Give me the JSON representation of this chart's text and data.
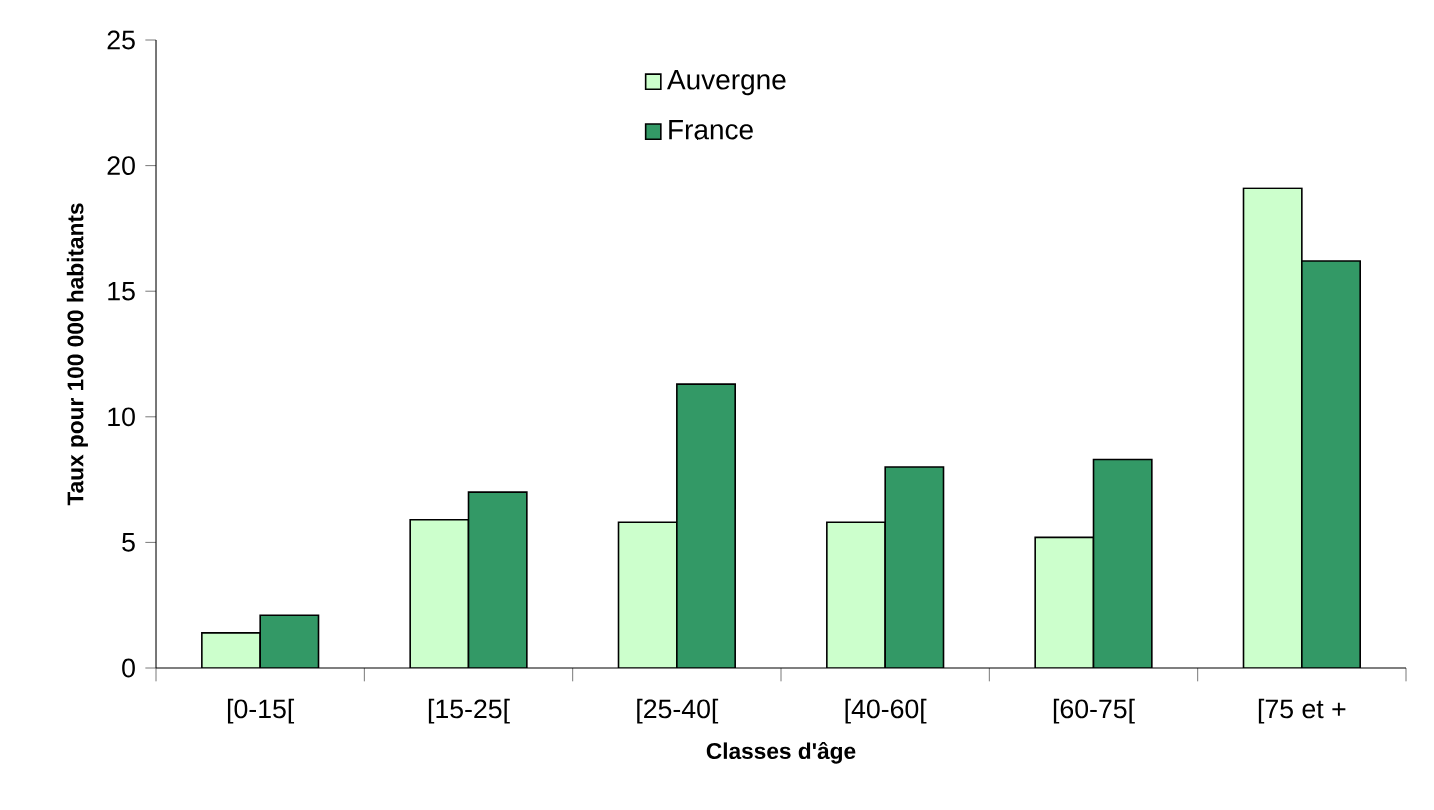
{
  "chart_data": {
    "type": "bar",
    "xlabel": "Classes d'âge",
    "ylabel": "Taux pour 100 000 habitants",
    "categories": [
      "[0-15[",
      "[15-25[",
      "[25-40[",
      "[40-60[",
      "[60-75[",
      "[75 et +"
    ],
    "series": [
      {
        "name": "Auvergne",
        "color": "#ccffcc",
        "values": [
          1.4,
          5.9,
          5.8,
          5.8,
          5.2,
          19.1
        ]
      },
      {
        "name": "France",
        "color": "#339966",
        "values": [
          2.1,
          7.0,
          11.3,
          8.0,
          8.3,
          16.2
        ]
      }
    ],
    "ylim": [
      0,
      25
    ],
    "yticks": [
      0,
      5,
      10,
      15,
      20,
      25
    ],
    "grid": false,
    "legend": "top"
  }
}
